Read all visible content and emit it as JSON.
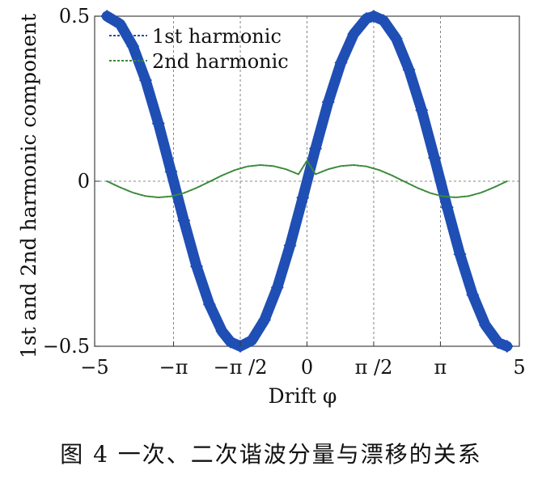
{
  "chart_data": {
    "type": "line",
    "xlabel": "Drift φ",
    "ylabel": "1st and 2nd harmonic component",
    "xlim": [
      -5,
      5
    ],
    "ylim": [
      -0.5,
      0.5
    ],
    "xticks": [
      {
        "value": -5,
        "label": "−5"
      },
      {
        "value": -3.1416,
        "label": "−π"
      },
      {
        "value": -1.5708,
        "label": "−π /2"
      },
      {
        "value": 0,
        "label": "0"
      },
      {
        "value": 1.5708,
        "label": "π /2"
      },
      {
        "value": 3.1416,
        "label": "π"
      },
      {
        "value": 5,
        "label": "5"
      }
    ],
    "yticks": [
      {
        "value": 0.5,
        "label": "0.5"
      },
      {
        "value": 0,
        "label": "0"
      },
      {
        "value": -0.5,
        "label": "−0.5"
      }
    ],
    "vlines": [
      -3.1416,
      -1.5708,
      0,
      1.5708,
      3.1416
    ],
    "hline": 0,
    "legend_position": "top-left",
    "series": [
      {
        "name": "1st harmonic",
        "color": "#1f4fb4",
        "marker": "diamond",
        "x": [
          -4.71,
          -4.4,
          -4.1,
          -3.8,
          -3.5,
          -3.2,
          -2.9,
          -2.6,
          -2.3,
          -2.0,
          -1.8,
          -1.5708,
          -1.3,
          -1.0,
          -0.7,
          -0.4,
          -0.1,
          0.2,
          0.5,
          0.8,
          1.1,
          1.4,
          1.5708,
          1.8,
          2.1,
          2.4,
          2.7,
          3.0,
          3.3,
          3.6,
          3.9,
          4.2,
          4.5,
          4.71
        ],
        "y": [
          0.5,
          0.476,
          0.409,
          0.306,
          0.175,
          0.029,
          -0.119,
          -0.258,
          -0.373,
          -0.455,
          -0.487,
          -0.5,
          -0.482,
          -0.42,
          -0.322,
          -0.195,
          -0.05,
          0.099,
          0.24,
          0.359,
          0.446,
          0.493,
          0.5,
          0.487,
          0.432,
          0.338,
          0.215,
          0.071,
          -0.079,
          -0.221,
          -0.344,
          -0.436,
          -0.489,
          -0.5
        ]
      },
      {
        "name": "2nd harmonic",
        "color": "#3a8a3a",
        "marker": "none",
        "x": [
          -4.71,
          -4.4,
          -4.1,
          -3.8,
          -3.5,
          -3.2,
          -2.9,
          -2.6,
          -2.3,
          -2.0,
          -1.7,
          -1.4,
          -1.1,
          -0.8,
          -0.5,
          -0.2,
          0,
          0.2,
          0.5,
          0.8,
          1.1,
          1.4,
          1.7,
          2.0,
          2.3,
          2.6,
          2.9,
          3.2,
          3.5,
          3.8,
          4.1,
          4.4,
          4.71
        ],
        "y": [
          0,
          -0.0186,
          -0.0346,
          -0.0452,
          -0.0491,
          -0.0458,
          -0.0358,
          -0.0202,
          -0.0014,
          0.0176,
          0.0339,
          0.0448,
          0.0491,
          0.0461,
          0.0365,
          0.0211,
          0.0625,
          0.0211,
          0.0365,
          0.0461,
          0.0491,
          0.0448,
          0.0339,
          0.0176,
          -0.0014,
          -0.0202,
          -0.0358,
          -0.0458,
          -0.0491,
          -0.0452,
          -0.0346,
          -0.0186,
          0
        ]
      }
    ]
  },
  "caption": "图 4  一次、二次谐波分量与漂移的关系"
}
